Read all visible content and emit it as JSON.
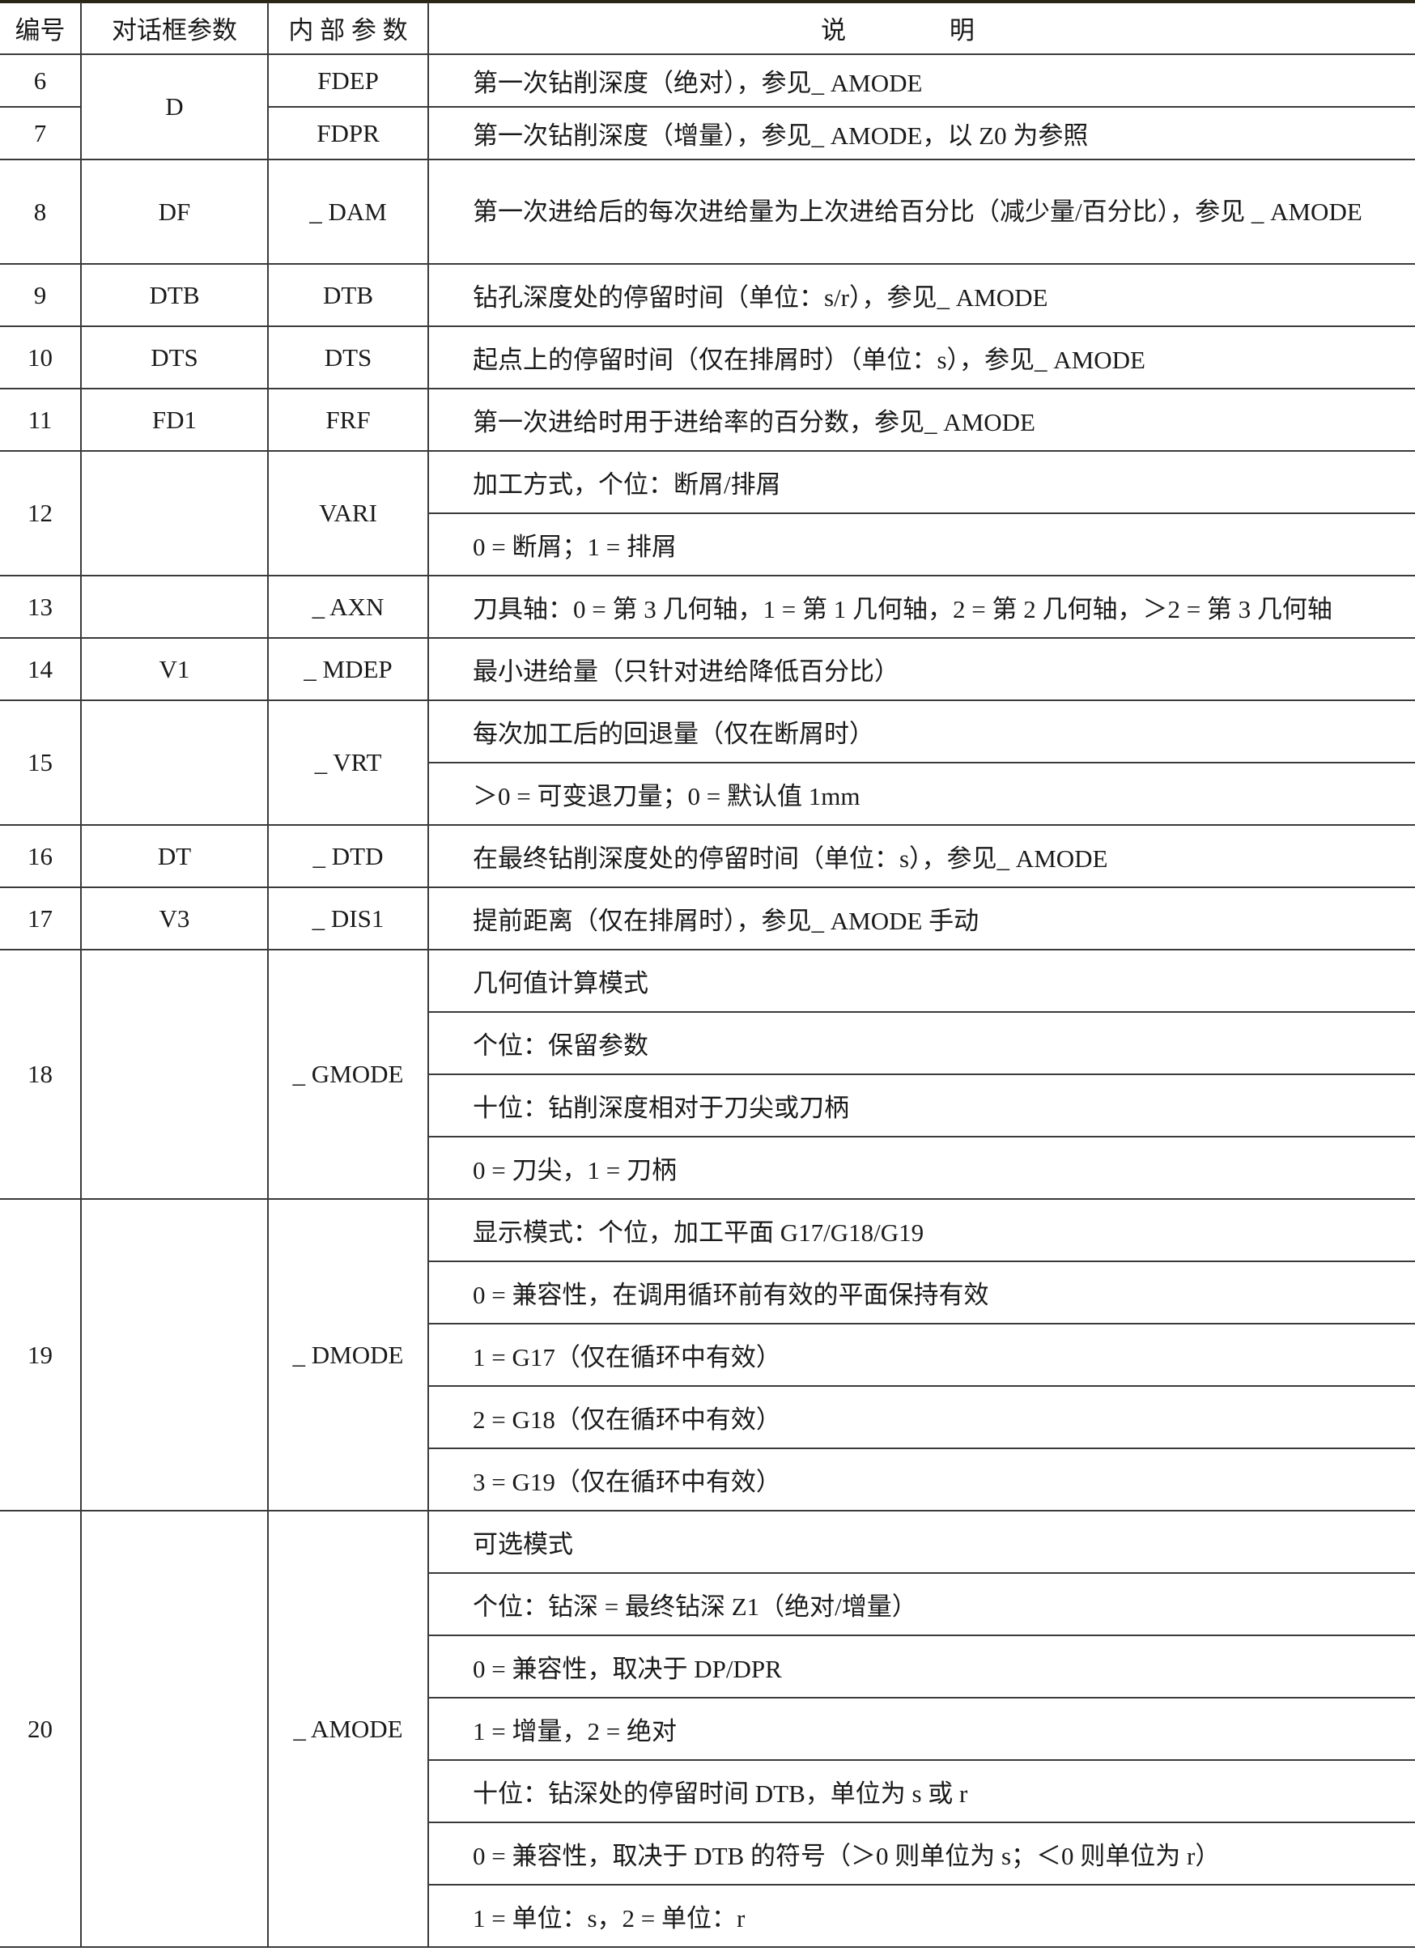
{
  "header": {
    "number": "编号",
    "dialog_param": "对话框参数",
    "internal_param": "内 部 参 数",
    "description": "说 明"
  },
  "rows": [
    {
      "number": "6",
      "dialog": "D",
      "dialog_rowspan": 2,
      "internal": "FDEP",
      "desc": [
        "第一次钻削深度（绝对），参见_ AMODE"
      ]
    },
    {
      "number": "7",
      "dialog": null,
      "internal": "FDPR",
      "desc": [
        "第一次钻削深度（增量），参见_ AMODE，以 Z0 为参照"
      ]
    },
    {
      "number": "8",
      "dialog": "DF",
      "internal": "_ DAM",
      "wrap": true,
      "desc": [
        "第一次进给后的每次进给量为上次进给百分比（减少量/百分比），参见 _ AMODE"
      ]
    },
    {
      "number": "9",
      "dialog": "DTB",
      "internal": "DTB",
      "desc": [
        "钻孔深度处的停留时间（单位：s/r），参见_ AMODE"
      ]
    },
    {
      "number": "10",
      "dialog": "DTS",
      "internal": "DTS",
      "desc": [
        "起点上的停留时间（仅在排屑时）（单位：s），参见_ AMODE"
      ]
    },
    {
      "number": "11",
      "dialog": "FD1",
      "internal": "FRF",
      "desc": [
        "第一次进给时用于进给率的百分数，参见_ AMODE"
      ]
    },
    {
      "number": "12",
      "dialog": "",
      "internal": "VARI",
      "desc": [
        "加工方式，个位：断屑/排屑",
        "0 = 断屑；1 = 排屑"
      ]
    },
    {
      "number": "13",
      "dialog": "",
      "internal": "_ AXN",
      "desc": [
        "刀具轴：0 = 第 3 几何轴，1 = 第 1 几何轴，2 = 第 2 几何轴，＞2 = 第 3 几何轴"
      ]
    },
    {
      "number": "14",
      "dialog": "V1",
      "internal": "_ MDEP",
      "desc": [
        "最小进给量（只针对进给降低百分比）"
      ]
    },
    {
      "number": "15",
      "dialog": "",
      "internal": "_ VRT",
      "desc": [
        "每次加工后的回退量（仅在断屑时）",
        "＞0 = 可变退刀量；0 = 默认值 1mm"
      ]
    },
    {
      "number": "16",
      "dialog": "DT",
      "internal": "_ DTD",
      "desc": [
        "在最终钻削深度处的停留时间（单位：s），参见_ AMODE"
      ]
    },
    {
      "number": "17",
      "dialog": "V3",
      "internal": "_ DIS1",
      "desc": [
        "提前距离（仅在排屑时），参见_ AMODE 手动"
      ]
    },
    {
      "number": "18",
      "dialog": "",
      "internal": "_ GMODE",
      "desc": [
        "几何值计算模式",
        "个位：保留参数",
        "十位：钻削深度相对于刀尖或刀柄",
        "0 = 刀尖，1 = 刀柄"
      ]
    },
    {
      "number": "19",
      "dialog": "",
      "internal": "_ DMODE",
      "desc": [
        "显示模式：个位，加工平面 G17/G18/G19",
        "0 = 兼容性，在调用循环前有效的平面保持有效",
        "1 = G17（仅在循环中有效）",
        "2 = G18（仅在循环中有效）",
        "3 = G19（仅在循环中有效）"
      ]
    },
    {
      "number": "20",
      "dialog": "",
      "internal": "_ AMODE",
      "desc": [
        "可选模式",
        "个位：钻深 = 最终钻深 Z1（绝对/增量）",
        "0 = 兼容性，取决于 DP/DPR",
        "1 = 增量，2 = 绝对",
        "十位：钻深处的停留时间 DTB，单位为 s 或 r",
        "0 = 兼容性，取决于 DTB 的符号（＞0 则单位为 s；＜0 则单位为 r）",
        "1 = 单位：s，2 = 单位：r"
      ]
    }
  ]
}
